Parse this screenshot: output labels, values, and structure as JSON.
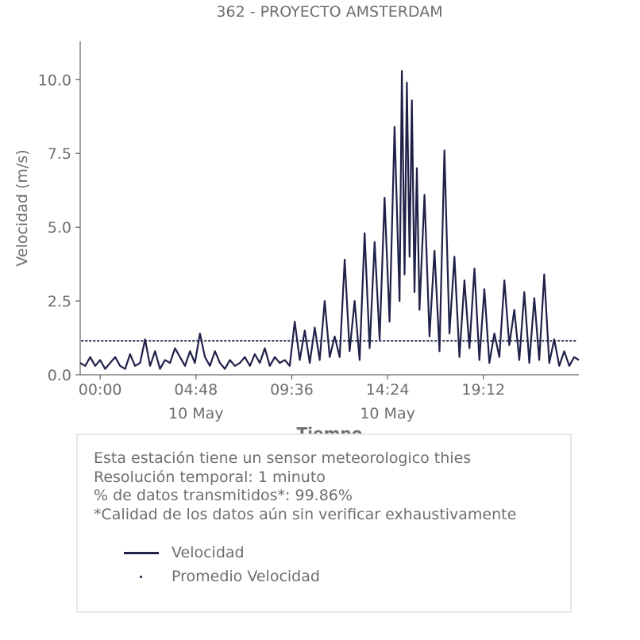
{
  "chart_data": {
    "type": "line",
    "title": "362 - PROYECTO AMSTERDAM",
    "xlabel": "Tiempo",
    "ylabel": "Velocidad (m/s)",
    "xlim": [
      "-01:00",
      "23:59"
    ],
    "ylim": [
      0,
      11.3
    ],
    "x_ticks": [
      {
        "time": "00:00",
        "label": "00:00",
        "sublabel": ""
      },
      {
        "time": "04:48",
        "label": "04:48",
        "sublabel": "10 May"
      },
      {
        "time": "09:36",
        "label": "09:36",
        "sublabel": ""
      },
      {
        "time": "14:24",
        "label": "14:24",
        "sublabel": "10 May"
      },
      {
        "time": "19:12",
        "label": "19:12",
        "sublabel": ""
      }
    ],
    "y_ticks": [
      "0.0",
      "2.5",
      "5.0",
      "7.5",
      "10.0"
    ],
    "grid": false,
    "series": [
      {
        "name": "Velocidad",
        "style": "line",
        "color": "#1f2148",
        "points": [
          [
            "-01:00",
            0.4
          ],
          [
            "-00:45",
            0.3
          ],
          [
            "-00:30",
            0.6
          ],
          [
            "-00:15",
            0.3
          ],
          [
            "00:00",
            0.5
          ],
          [
            "00:15",
            0.2
          ],
          [
            "00:30",
            0.4
          ],
          [
            "00:45",
            0.6
          ],
          [
            "01:00",
            0.3
          ],
          [
            "01:15",
            0.2
          ],
          [
            "01:30",
            0.7
          ],
          [
            "01:45",
            0.3
          ],
          [
            "02:00",
            0.4
          ],
          [
            "02:15",
            1.2
          ],
          [
            "02:30",
            0.3
          ],
          [
            "02:45",
            0.8
          ],
          [
            "03:00",
            0.2
          ],
          [
            "03:15",
            0.5
          ],
          [
            "03:30",
            0.4
          ],
          [
            "03:45",
            0.9
          ],
          [
            "04:00",
            0.6
          ],
          [
            "04:15",
            0.3
          ],
          [
            "04:30",
            0.8
          ],
          [
            "04:45",
            0.4
          ],
          [
            "05:00",
            1.4
          ],
          [
            "05:15",
            0.6
          ],
          [
            "05:30",
            0.3
          ],
          [
            "05:45",
            0.8
          ],
          [
            "06:00",
            0.4
          ],
          [
            "06:15",
            0.2
          ],
          [
            "06:30",
            0.5
          ],
          [
            "06:45",
            0.3
          ],
          [
            "07:00",
            0.4
          ],
          [
            "07:15",
            0.6
          ],
          [
            "07:30",
            0.3
          ],
          [
            "07:45",
            0.7
          ],
          [
            "08:00",
            0.4
          ],
          [
            "08:15",
            0.9
          ],
          [
            "08:30",
            0.3
          ],
          [
            "08:45",
            0.6
          ],
          [
            "09:00",
            0.4
          ],
          [
            "09:15",
            0.5
          ],
          [
            "09:30",
            0.3
          ],
          [
            "09:45",
            1.8
          ],
          [
            "10:00",
            0.5
          ],
          [
            "10:15",
            1.5
          ],
          [
            "10:30",
            0.4
          ],
          [
            "10:45",
            1.6
          ],
          [
            "11:00",
            0.5
          ],
          [
            "11:15",
            2.5
          ],
          [
            "11:30",
            0.6
          ],
          [
            "11:45",
            1.3
          ],
          [
            "12:00",
            0.6
          ],
          [
            "12:15",
            3.9
          ],
          [
            "12:30",
            0.8
          ],
          [
            "12:45",
            2.5
          ],
          [
            "13:00",
            0.5
          ],
          [
            "13:15",
            4.8
          ],
          [
            "13:30",
            0.9
          ],
          [
            "13:45",
            4.5
          ],
          [
            "14:00",
            1.2
          ],
          [
            "14:15",
            6.0
          ],
          [
            "14:30",
            1.8
          ],
          [
            "14:45",
            8.4
          ],
          [
            "15:00",
            2.5
          ],
          [
            "15:07",
            10.3
          ],
          [
            "15:15",
            3.4
          ],
          [
            "15:22",
            9.9
          ],
          [
            "15:30",
            4.0
          ],
          [
            "15:37",
            9.3
          ],
          [
            "15:45",
            2.8
          ],
          [
            "15:52",
            7.0
          ],
          [
            "16:00",
            2.2
          ],
          [
            "16:15",
            6.1
          ],
          [
            "16:30",
            1.3
          ],
          [
            "16:45",
            4.2
          ],
          [
            "17:00",
            0.8
          ],
          [
            "17:15",
            7.6
          ],
          [
            "17:30",
            1.4
          ],
          [
            "17:45",
            4.0
          ],
          [
            "18:00",
            0.6
          ],
          [
            "18:15",
            3.2
          ],
          [
            "18:30",
            0.9
          ],
          [
            "18:45",
            3.6
          ],
          [
            "19:00",
            0.5
          ],
          [
            "19:15",
            2.9
          ],
          [
            "19:30",
            0.4
          ],
          [
            "19:45",
            1.4
          ],
          [
            "20:00",
            0.6
          ],
          [
            "20:15",
            3.2
          ],
          [
            "20:30",
            1.0
          ],
          [
            "20:45",
            2.2
          ],
          [
            "21:00",
            0.5
          ],
          [
            "21:15",
            2.8
          ],
          [
            "21:30",
            0.4
          ],
          [
            "21:45",
            2.6
          ],
          [
            "22:00",
            0.5
          ],
          [
            "22:15",
            3.4
          ],
          [
            "22:30",
            0.4
          ],
          [
            "22:45",
            1.2
          ],
          [
            "23:00",
            0.3
          ],
          [
            "23:15",
            0.8
          ],
          [
            "23:30",
            0.3
          ],
          [
            "23:45",
            0.6
          ],
          [
            "23:59",
            0.5
          ]
        ]
      },
      {
        "name": "Promedio Velocidad",
        "style": "dotted",
        "color": "#1f2148",
        "value": 1.15
      }
    ]
  },
  "info": {
    "line1": "Esta estación tiene un sensor meteorologico thies",
    "line2": "Resolución temporal: 1 minuto",
    "line3": "% de datos transmitidos*: 99.86%",
    "line4": "*Calidad de los datos aún sin verificar exhaustivamente"
  },
  "legend": {
    "line_label": "Velocidad",
    "dots_label": "Promedio Velocidad"
  },
  "colors": {
    "series": "#1f2148",
    "text": "#6e6e6e",
    "axis": "#444444",
    "box_border": "#e6e6e6"
  }
}
